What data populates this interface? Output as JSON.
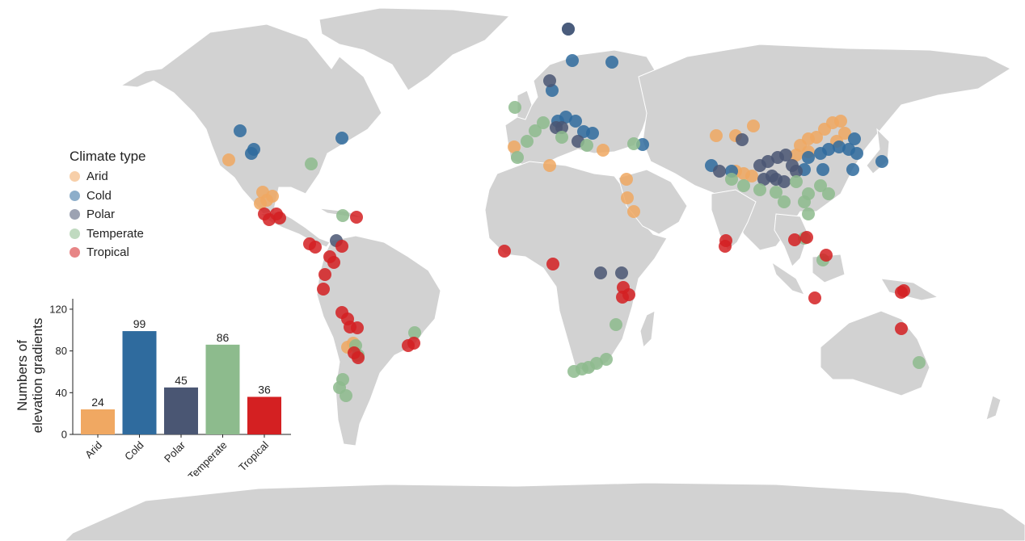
{
  "legend": {
    "title": "Climate type",
    "items": [
      {
        "label": "Arid",
        "color": "#f0a862"
      },
      {
        "label": "Cold",
        "color": "#2f6b9e"
      },
      {
        "label": "Polar",
        "color": "#4a5673"
      },
      {
        "label": "Temperate",
        "color": "#8dbb8d"
      },
      {
        "label": "Tropical",
        "color": "#d42022"
      }
    ]
  },
  "chart_data": {
    "type": "bar",
    "categories": [
      "Arid",
      "Cold",
      "Polar",
      "Temperate",
      "Tropical"
    ],
    "values": [
      24,
      99,
      45,
      86,
      36
    ],
    "colors": [
      "#f0a862",
      "#2f6b9e",
      "#4a5673",
      "#8dbb8d",
      "#d42022"
    ],
    "ylabel_line1": "Numbers of",
    "ylabel_line2": "elevation gradients",
    "yticks": [
      0,
      40,
      80,
      120
    ],
    "ylim": [
      0,
      130
    ]
  }
}
